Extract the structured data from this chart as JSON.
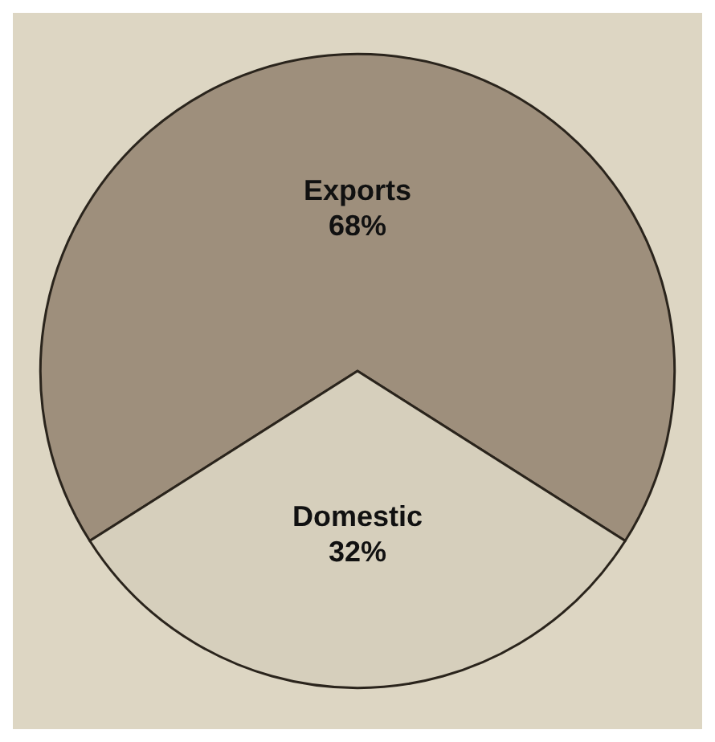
{
  "chart_data": {
    "type": "pie",
    "categories": [
      "Exports",
      "Domestic"
    ],
    "values": [
      68,
      32
    ],
    "colors": [
      "#9e8f7c",
      "#d6cfbc"
    ],
    "value_labels": [
      "68%",
      "32%"
    ],
    "legend": false
  }
}
